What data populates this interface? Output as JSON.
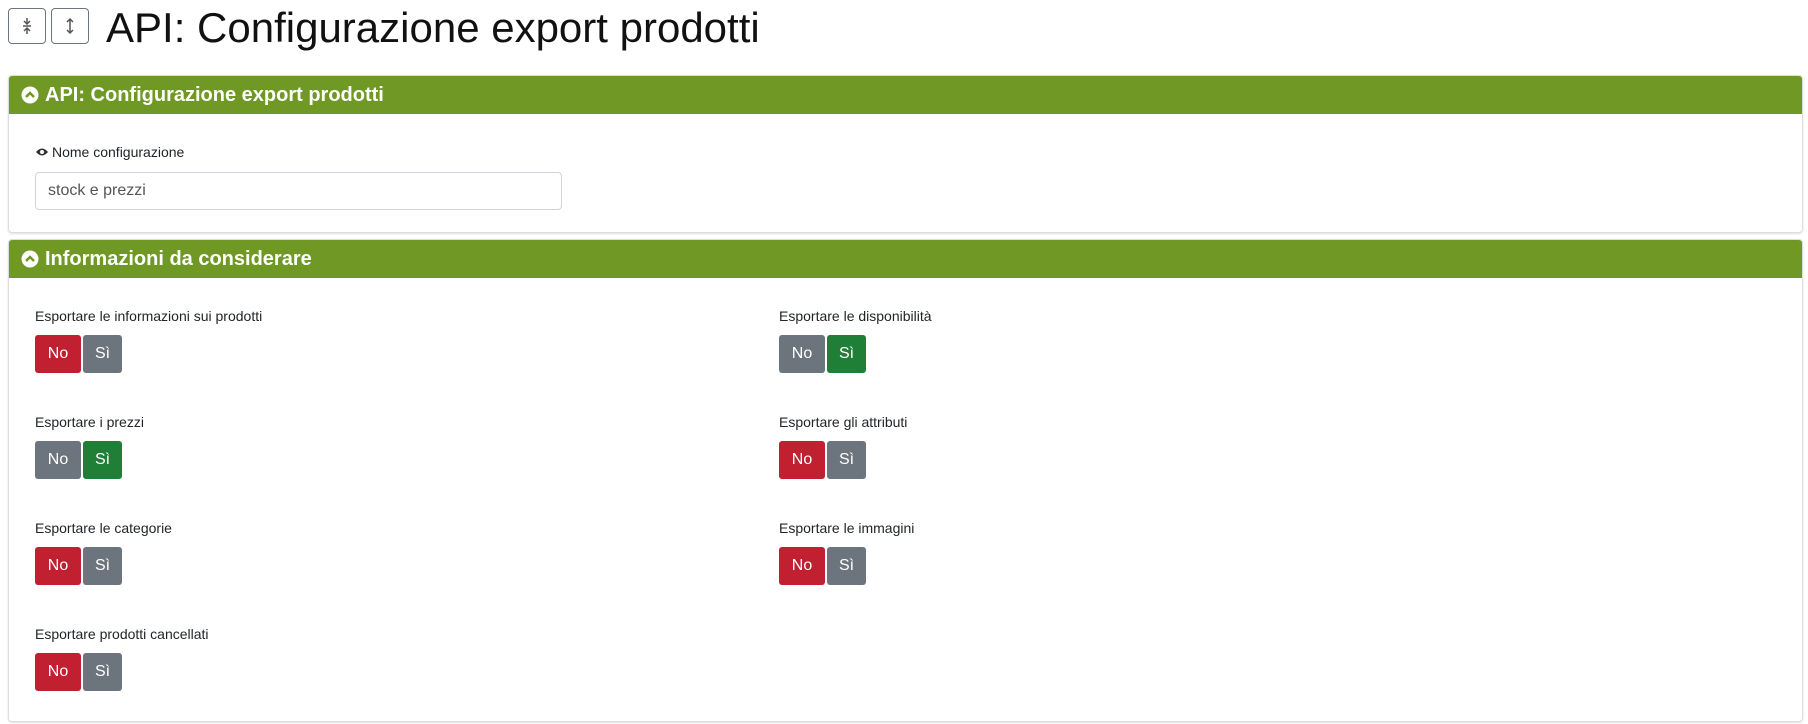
{
  "toolbar": {
    "title": "API: Configurazione export prodotti"
  },
  "panels": [
    {
      "title": "API: Configurazione export prodotti",
      "fields": [
        {
          "label": "Nome configurazione",
          "value": "stock e prezzi"
        }
      ]
    },
    {
      "title": "Informazioni da considerare",
      "options": [
        "No",
        "Sì"
      ],
      "toggles": [
        {
          "label": "Esportare le informazioni sui prodotti",
          "selected": "No"
        },
        {
          "label": "Esportare le disponibilità",
          "selected": "Sì"
        },
        {
          "label": "Esportare i prezzi",
          "selected": "Sì"
        },
        {
          "label": "Esportare gli attributi",
          "selected": "No"
        },
        {
          "label": "Esportare le categorie",
          "selected": "No"
        },
        {
          "label": "Esportare le immagini",
          "selected": "No"
        },
        {
          "label": "Esportare prodotti cancellati",
          "selected": "No"
        }
      ]
    }
  ]
}
